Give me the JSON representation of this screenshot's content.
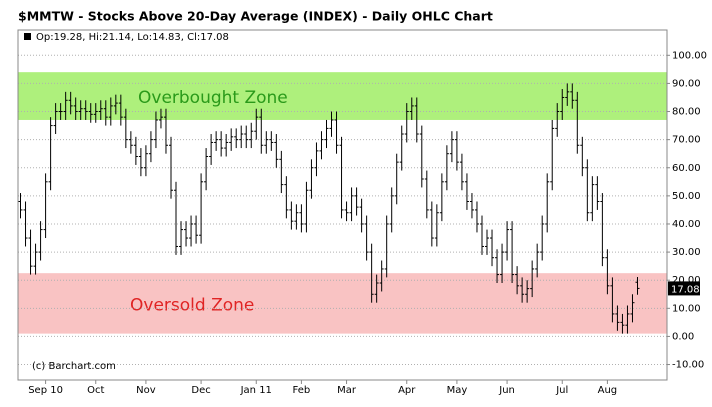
{
  "chart_data": {
    "type": "ohlc",
    "title": "$MMTW - Stocks Above 20-Day Average (INDEX) - Daily OHLC Chart",
    "legend_text": "Op:19.28, Hi:21.14, Lo:14.83, Cl:17.08",
    "source": "(c) Barchart.com",
    "categories": [
      null,
      null,
      null,
      null,
      null,
      "Sep 10",
      null,
      null,
      null,
      null,
      null,
      null,
      null,
      null,
      null,
      "Oct",
      null,
      null,
      null,
      null,
      null,
      null,
      null,
      null,
      null,
      "Nov",
      null,
      null,
      null,
      null,
      null,
      null,
      null,
      null,
      null,
      null,
      "Dec",
      null,
      null,
      null,
      null,
      null,
      null,
      null,
      null,
      null,
      null,
      "Jan 11",
      null,
      null,
      null,
      null,
      null,
      null,
      null,
      null,
      "Feb",
      null,
      null,
      null,
      null,
      null,
      null,
      null,
      null,
      "Mar",
      null,
      null,
      null,
      null,
      null,
      null,
      null,
      null,
      null,
      null,
      null,
      "Apr",
      null,
      null,
      null,
      null,
      null,
      null,
      null,
      null,
      null,
      "May",
      null,
      null,
      null,
      null,
      null,
      null,
      null,
      null,
      null,
      "Jun",
      null,
      null,
      null,
      null,
      null,
      null,
      null,
      null,
      null,
      null,
      "Jul",
      null,
      null,
      null,
      null,
      null,
      null,
      null,
      null,
      "Aug",
      null,
      null,
      null,
      null,
      null,
      null
    ],
    "open": [
      48,
      45,
      35,
      25,
      30,
      38,
      55,
      75,
      80,
      80,
      84,
      82,
      80,
      81,
      80,
      79,
      80,
      81,
      78,
      82,
      83,
      78,
      70,
      68,
      64,
      60,
      65,
      70,
      77,
      78,
      68,
      52,
      32,
      38,
      35,
      40,
      36,
      55,
      64,
      69,
      70,
      67,
      69,
      71,
      70,
      72,
      70,
      73,
      78,
      68,
      70,
      69,
      63,
      54,
      45,
      41,
      44,
      40,
      52,
      60,
      66,
      70,
      74,
      77,
      68,
      45,
      44,
      50,
      46,
      40,
      30,
      15,
      19,
      24,
      40,
      50,
      62,
      72,
      80,
      82,
      72,
      56,
      45,
      35,
      44,
      55,
      65,
      70,
      62,
      55,
      48,
      45,
      40,
      32,
      35,
      28,
      22,
      30,
      38,
      22,
      18,
      15,
      17,
      24,
      30,
      40,
      55,
      74,
      80,
      85,
      87,
      84,
      68,
      60,
      44,
      54,
      48,
      28,
      18,
      8,
      5,
      4,
      8,
      19.28
    ],
    "high": [
      51,
      48,
      38,
      33,
      41,
      58,
      78,
      83,
      83,
      87,
      87,
      85,
      84,
      84,
      83,
      83,
      84,
      84,
      85,
      86,
      86,
      81,
      73,
      71,
      67,
      68,
      73,
      80,
      81,
      81,
      71,
      55,
      41,
      41,
      43,
      43,
      58,
      67,
      72,
      73,
      73,
      72,
      74,
      74,
      75,
      75,
      76,
      81,
      81,
      73,
      73,
      72,
      66,
      57,
      48,
      47,
      47,
      55,
      63,
      69,
      73,
      77,
      80,
      80,
      71,
      48,
      53,
      53,
      49,
      43,
      33,
      22,
      27,
      43,
      53,
      65,
      75,
      83,
      85,
      85,
      75,
      59,
      48,
      47,
      58,
      68,
      73,
      73,
      65,
      58,
      51,
      48,
      43,
      38,
      38,
      31,
      33,
      41,
      41,
      25,
      21,
      20,
      27,
      33,
      43,
      58,
      77,
      83,
      88,
      90,
      90,
      87,
      71,
      63,
      57,
      57,
      51,
      31,
      21,
      11,
      8,
      11,
      15,
      21.14
    ],
    "low": [
      42,
      32,
      22,
      22,
      27,
      35,
      52,
      72,
      77,
      77,
      79,
      77,
      77,
      77,
      76,
      76,
      77,
      75,
      75,
      79,
      75,
      67,
      65,
      61,
      57,
      57,
      62,
      67,
      74,
      65,
      49,
      29,
      29,
      32,
      32,
      33,
      33,
      52,
      61,
      66,
      64,
      64,
      66,
      67,
      67,
      67,
      67,
      70,
      65,
      65,
      66,
      60,
      51,
      42,
      38,
      38,
      37,
      37,
      49,
      57,
      63,
      67,
      71,
      65,
      42,
      41,
      41,
      43,
      37,
      27,
      12,
      12,
      16,
      21,
      37,
      47,
      59,
      69,
      77,
      69,
      53,
      42,
      32,
      32,
      41,
      52,
      62,
      59,
      52,
      45,
      42,
      37,
      29,
      29,
      25,
      19,
      19,
      27,
      19,
      15,
      12,
      12,
      14,
      21,
      27,
      37,
      52,
      71,
      77,
      82,
      81,
      65,
      57,
      41,
      41,
      45,
      25,
      15,
      5,
      2,
      1,
      1,
      5,
      14.83
    ],
    "close": [
      45,
      35,
      25,
      30,
      38,
      55,
      75,
      80,
      80,
      84,
      82,
      80,
      81,
      80,
      79,
      80,
      81,
      78,
      82,
      83,
      78,
      70,
      68,
      64,
      60,
      65,
      70,
      77,
      78,
      68,
      52,
      32,
      38,
      35,
      40,
      36,
      55,
      64,
      69,
      70,
      67,
      69,
      71,
      70,
      72,
      70,
      73,
      78,
      68,
      70,
      69,
      63,
      54,
      45,
      41,
      44,
      40,
      52,
      60,
      66,
      70,
      74,
      77,
      68,
      45,
      44,
      50,
      46,
      40,
      30,
      15,
      19,
      24,
      40,
      50,
      62,
      72,
      80,
      82,
      72,
      56,
      45,
      35,
      44,
      55,
      65,
      70,
      62,
      55,
      48,
      45,
      40,
      32,
      35,
      28,
      22,
      30,
      38,
      22,
      18,
      15,
      17,
      24,
      30,
      40,
      55,
      74,
      80,
      85,
      87,
      84,
      68,
      60,
      44,
      54,
      48,
      28,
      18,
      8,
      5,
      4,
      8,
      12,
      17.08
    ],
    "color": "#000000",
    "ylim": [
      -15.5,
      109
    ],
    "yticks": [
      {
        "value": -10,
        "label": "-10.00"
      },
      {
        "value": 0,
        "label": "0.00"
      },
      {
        "value": 10,
        "label": "10.00"
      },
      {
        "value": 20,
        "label": "20.00"
      },
      {
        "value": 30,
        "label": "30.00"
      },
      {
        "value": 40,
        "label": "40.00"
      },
      {
        "value": 50,
        "label": "50.00"
      },
      {
        "value": 60,
        "label": "60.00"
      },
      {
        "value": 70,
        "label": "70.00"
      },
      {
        "value": 80,
        "label": "80.00"
      },
      {
        "value": 90,
        "label": "90.00"
      },
      {
        "value": 100,
        "label": "100.00"
      }
    ],
    "grid": true,
    "zones": [
      {
        "label": "Overbought Zone",
        "range": [
          77,
          94
        ],
        "color": "#aef07c",
        "text_color": "#2a9a1a"
      },
      {
        "label": "Oversold Zone",
        "range": [
          1,
          22.5
        ],
        "color": "#f9c3c3",
        "text_color": "#e02424"
      }
    ]
  }
}
